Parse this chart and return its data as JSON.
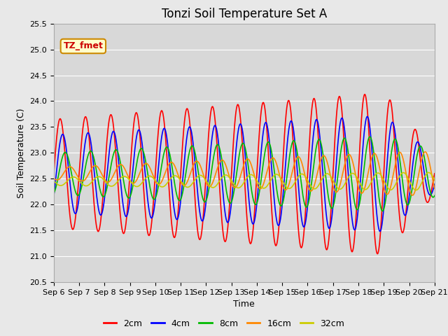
{
  "title": "Tonzi Soil Temperature Set A",
  "xlabel": "Time",
  "ylabel": "Soil Temperature (C)",
  "ylim": [
    20.5,
    25.5
  ],
  "x_tick_labels": [
    "Sep 6",
    "Sep 7",
    "Sep 8",
    "Sep 9",
    "Sep 10",
    "Sep 11",
    "Sep 12",
    "Sep 13",
    "Sep 14",
    "Sep 15",
    "Sep 16",
    "Sep 17",
    "Sep 18",
    "Sep 19",
    "Sep 20",
    "Sep 21"
  ],
  "legend_labels": [
    "2cm",
    "4cm",
    "8cm",
    "16cm",
    "32cm"
  ],
  "legend_colors": [
    "#ff0000",
    "#0000ff",
    "#00bb00",
    "#ff8800",
    "#cccc00"
  ],
  "annotation_text": "TZ_fmet",
  "annotation_bg": "#ffffcc",
  "annotation_border": "#cc8800",
  "background_color": "#e8e8e8",
  "plot_bg_color": "#d8d8d8",
  "grid_color": "#ffffff",
  "title_fontsize": 12,
  "label_fontsize": 9,
  "tick_fontsize": 8,
  "legend_fontsize": 9,
  "line_width": 1.2,
  "series": {
    "2cm": {
      "color": "#ff0000",
      "mean": 22.6,
      "amp_base": 1.05,
      "amp_grow": 0.55,
      "amp_peak_day": 14.0,
      "phase_shift": 0.0,
      "period": 1.0,
      "late_drop": 1.2
    },
    "4cm": {
      "color": "#0000ff",
      "mean": 22.6,
      "amp_base": 0.75,
      "amp_grow": 0.4,
      "amp_peak_day": 14.0,
      "phase_shift": 0.1,
      "period": 1.0,
      "late_drop": 0.8
    },
    "8cm": {
      "color": "#00bb00",
      "mean": 22.6,
      "amp_base": 0.4,
      "amp_grow": 0.35,
      "amp_peak_day": 14.0,
      "phase_shift": 0.2,
      "period": 1.0,
      "late_drop": 0.3
    },
    "16cm": {
      "color": "#ff8800",
      "mean": 22.6,
      "amp_base": 0.12,
      "amp_grow": 0.3,
      "amp_peak_day": 14.0,
      "phase_shift": 0.38,
      "period": 1.0,
      "late_drop": 0.0
    },
    "32cm": {
      "color": "#cccc00",
      "mean": 22.45,
      "amp_base": 0.08,
      "amp_grow": 0.09,
      "amp_peak_day": 14.0,
      "phase_shift": 0.52,
      "period": 1.0,
      "late_drop": 0.0
    }
  }
}
